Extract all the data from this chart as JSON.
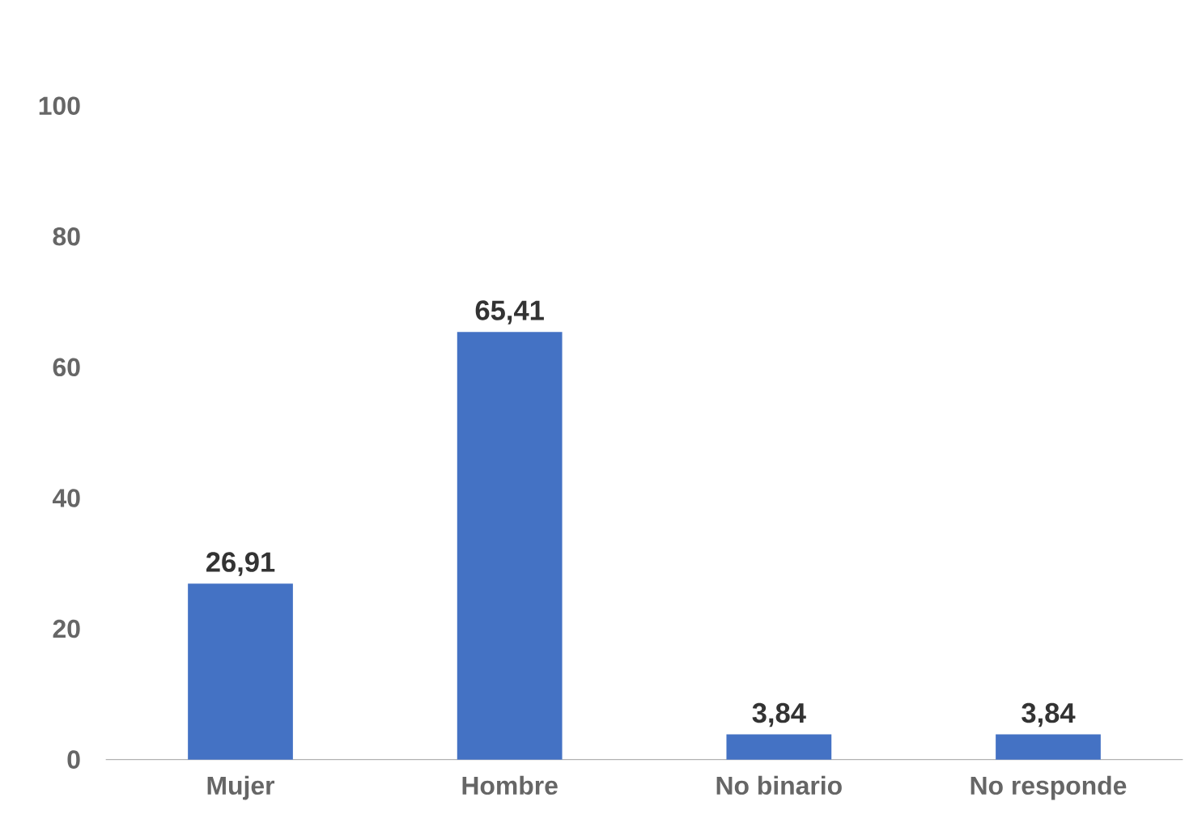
{
  "chart_data": {
    "type": "bar",
    "categories": [
      "Mujer",
      "Hombre",
      "No binario",
      "No responde"
    ],
    "values": [
      26.91,
      65.41,
      3.84,
      3.84
    ],
    "value_labels": [
      "26,91",
      "65,41",
      "3,84",
      "3,84"
    ],
    "color": "#4472c4",
    "ylim": [
      0,
      100
    ],
    "yticks": [
      0,
      20,
      40,
      60,
      80,
      100
    ]
  }
}
